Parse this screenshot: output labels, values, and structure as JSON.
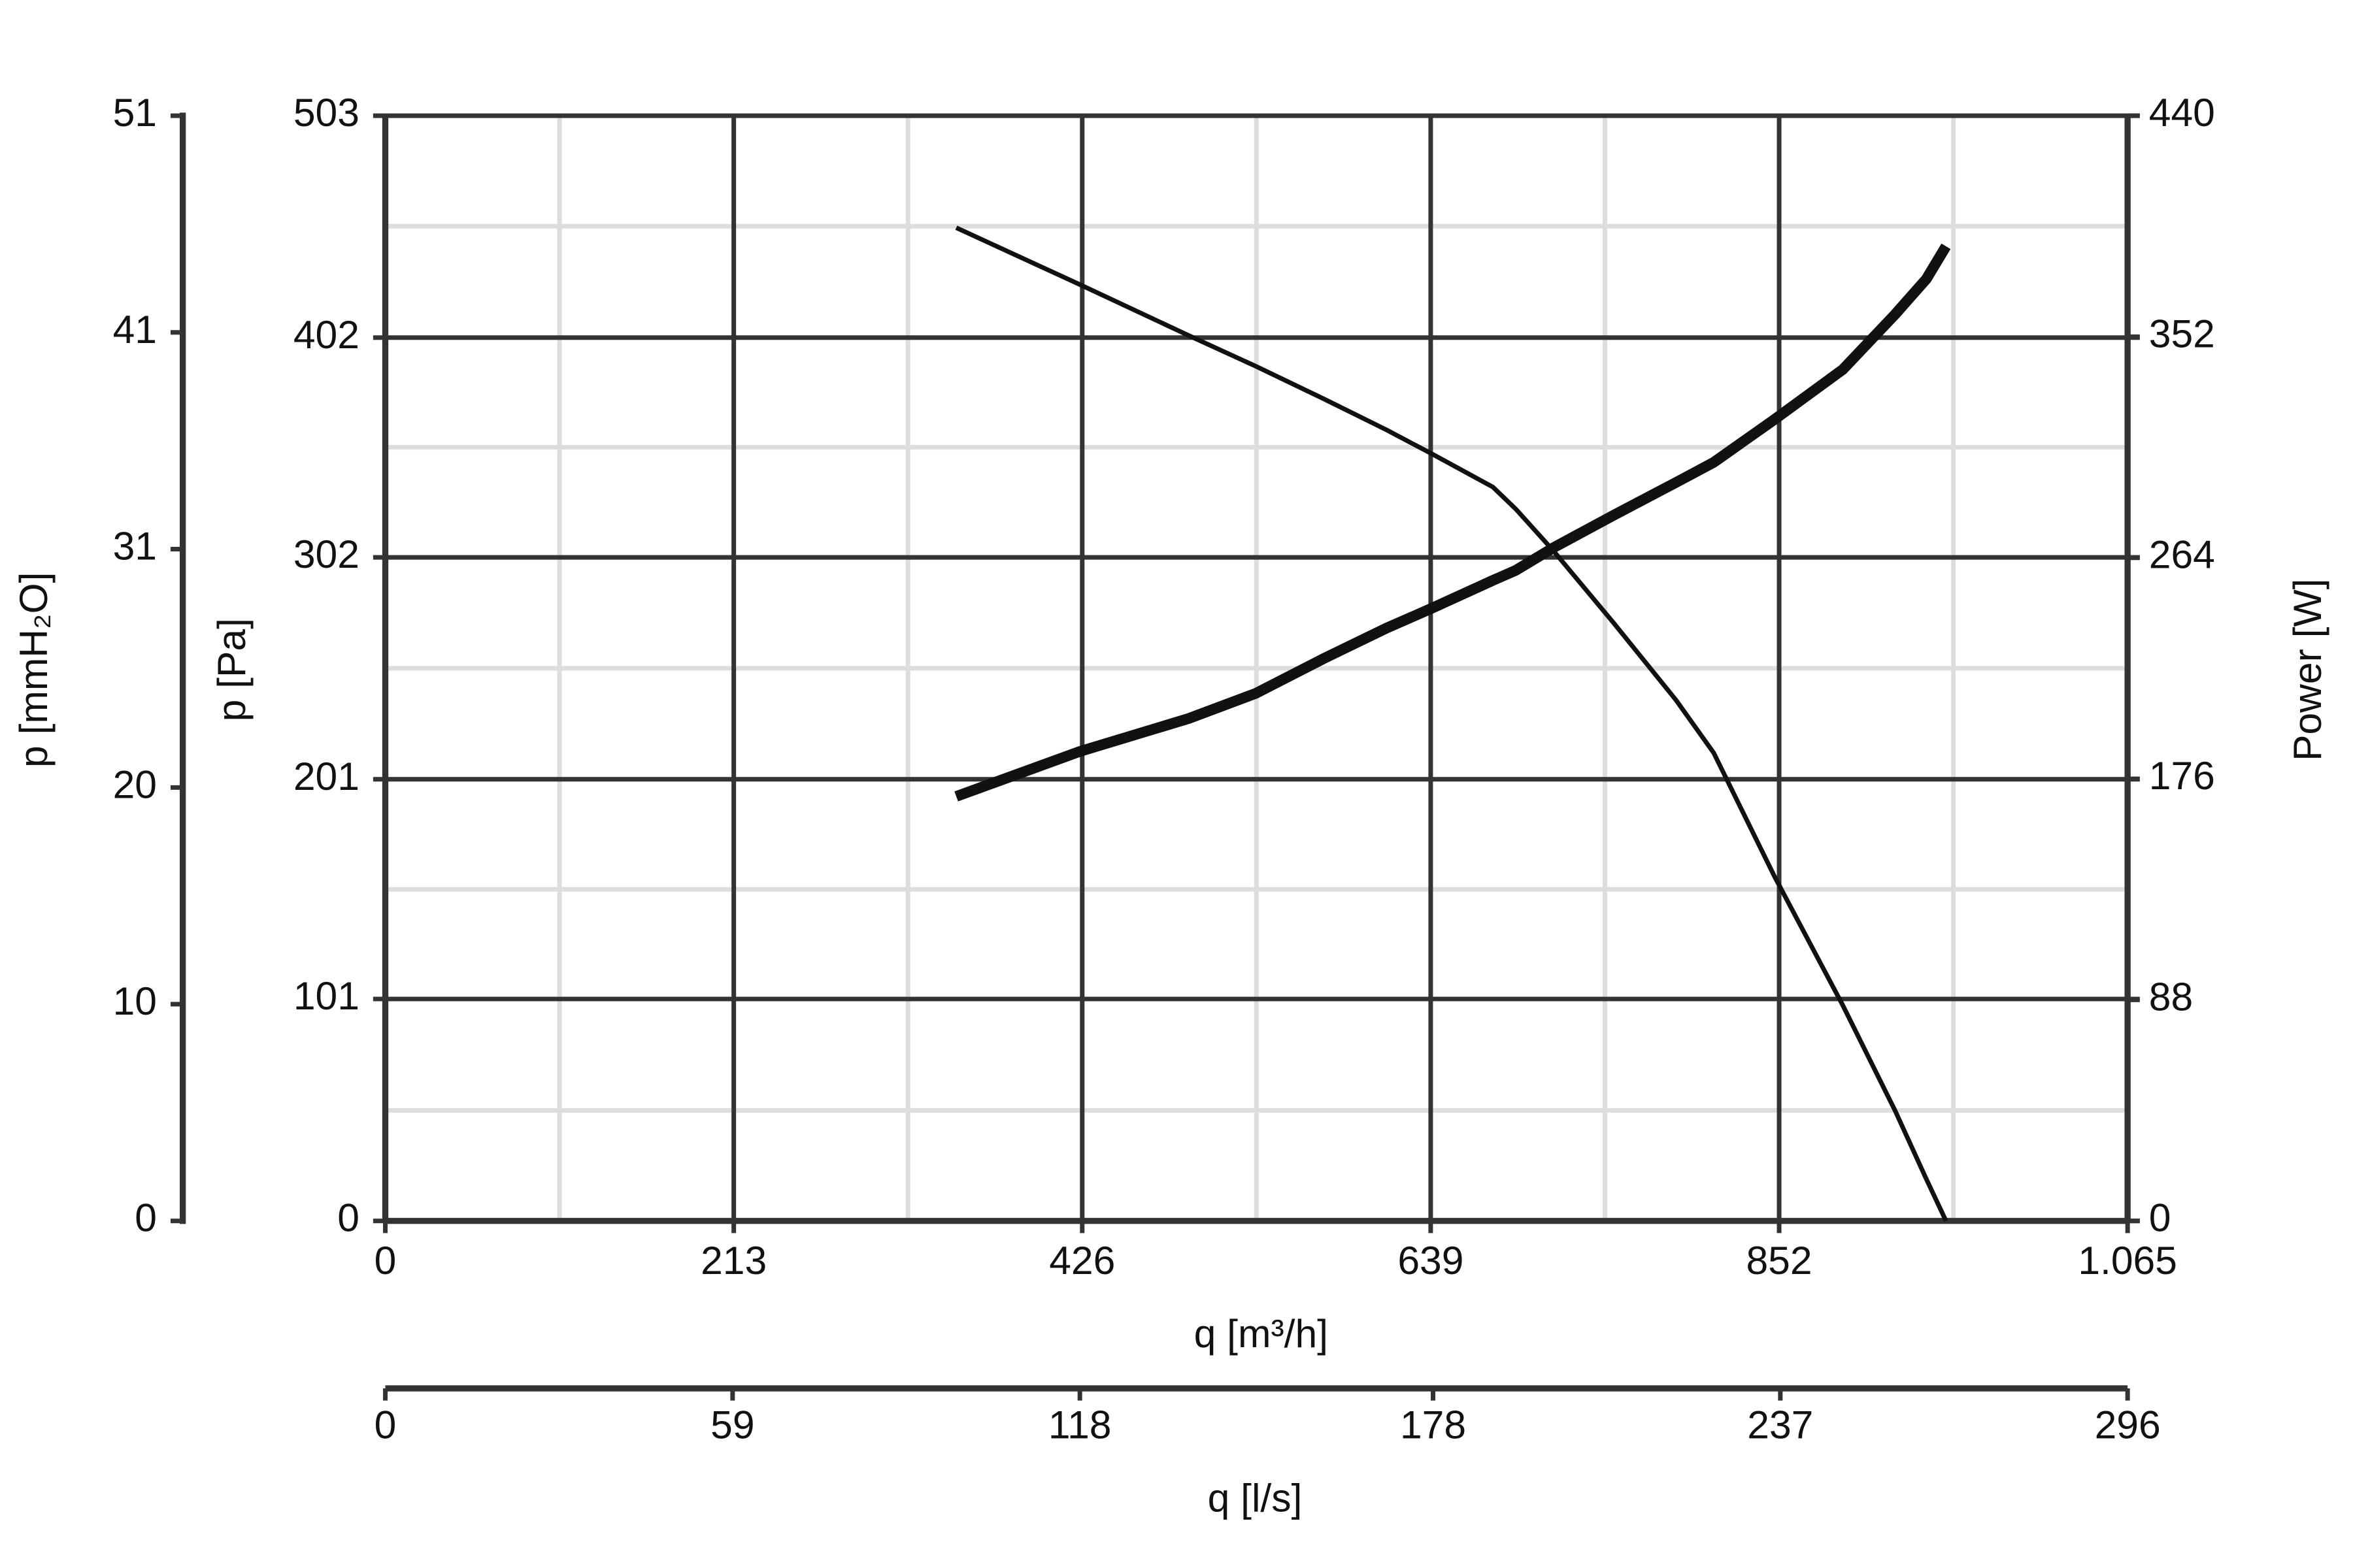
{
  "chart_data": {
    "type": "line",
    "x_label": "q [m³/h]",
    "x2_label": "q [l/s]",
    "y_label": "p [Pa]",
    "y3_label": "p [mmH₂O]",
    "y2_label": "Power [W]",
    "x": [
      349,
      425,
      491,
      532,
      574,
      612,
      640,
      677,
      691,
      714,
      751,
      789,
      812,
      849,
      891,
      923,
      942,
      954
    ],
    "series": [
      {
        "color": "#111111",
        "values": [
          452,
          426,
          403,
          389,
          374,
          360,
          349,
          334,
          324,
          305,
          272,
          237,
          213,
          157,
          98,
          50,
          19,
          0
        ]
      },
      {
        "color": "#111111",
        "axis": "y2",
        "values": [
          169,
          187,
          200,
          210,
          224,
          236,
          244,
          255,
          259,
          268,
          281,
          294,
          302,
          319,
          339,
          361,
          375,
          388
        ]
      }
    ],
    "xlim": [
      0,
      1065
    ],
    "xticks": [
      0,
      213,
      426,
      639,
      852,
      {
        "value": 1065,
        "label": "1.065"
      }
    ],
    "x2lim": [
      0,
      296
    ],
    "x2ticks": [
      0,
      59,
      118,
      178,
      237,
      296
    ],
    "ylim": [
      0,
      503
    ],
    "yticks": [
      0,
      101,
      201,
      302,
      402,
      503
    ],
    "y3lim": [
      0,
      51
    ],
    "y3ticks": [
      0,
      10,
      20,
      31,
      41,
      51
    ],
    "y2lim": [
      0,
      440
    ],
    "y2ticks": [
      0,
      88,
      176,
      264,
      352,
      440
    ],
    "x_minor_grid": [
      106.5,
      319.5,
      532.5,
      745.5,
      958.5
    ],
    "y_minor_grid": [
      50.3,
      150.9,
      251.5,
      352.1,
      452.7
    ],
    "grid": true
  }
}
